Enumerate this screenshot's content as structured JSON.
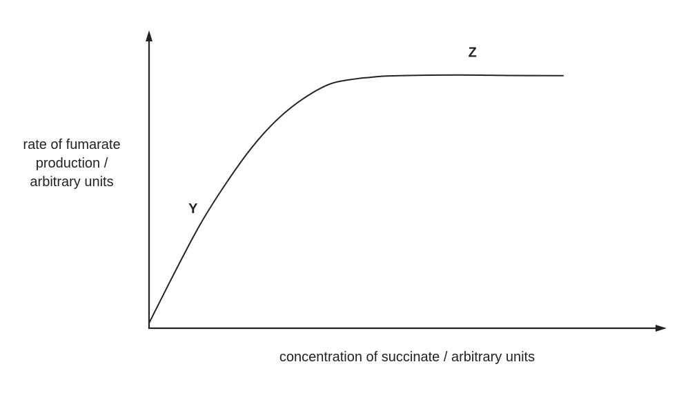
{
  "chart_data": {
    "type": "line",
    "title": "",
    "xlabel": "concentration of succinate / arbitrary units",
    "ylabel_lines": [
      "rate of fumarate",
      "production /",
      "arbitrary units"
    ],
    "x_ticks": [],
    "y_ticks": [],
    "grid": false,
    "legend": "none",
    "xlim": [
      0,
      100
    ],
    "ylim": [
      0,
      100
    ],
    "series": [
      {
        "color": "#222222",
        "x": [
          0,
          5,
          10,
          15,
          20,
          25,
          30,
          35,
          40,
          42.5,
          45,
          50,
          60,
          70,
          80
        ],
        "y": [
          2,
          22,
          41,
          57,
          71,
          82,
          90,
          95.5,
          97.5,
          98,
          98.5,
          98.8,
          99,
          98.8,
          98.7
        ]
      }
    ],
    "annotations": [
      {
        "label": "Y",
        "x": 8.5,
        "y": 45
      },
      {
        "label": "Z",
        "x": 62.5,
        "y": 106
      }
    ],
    "axis_color": "#222222"
  }
}
